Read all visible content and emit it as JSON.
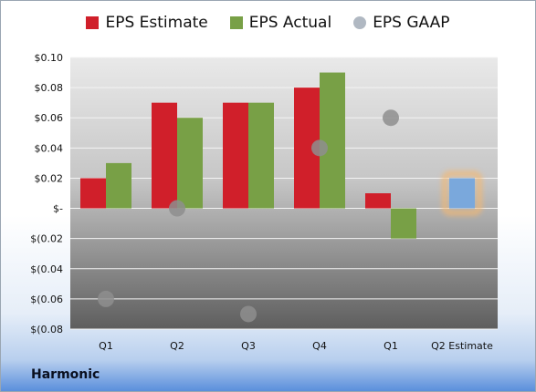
{
  "chart_data": {
    "type": "bar",
    "categories": [
      "Q1",
      "Q2",
      "Q3",
      "Q4",
      "Q1",
      "Q2 Estimate"
    ],
    "series": [
      {
        "name": "EPS Estimate",
        "color": "#d01f2a",
        "values": [
          0.02,
          0.07,
          0.07,
          0.08,
          0.01,
          null
        ]
      },
      {
        "name": "EPS Actual",
        "color": "#78a046",
        "values": [
          0.03,
          0.06,
          0.07,
          0.09,
          -0.02,
          null
        ]
      },
      {
        "name": "EPS GAAP",
        "color": "#b0b8c2",
        "marker": "circle",
        "values": [
          -0.06,
          0.0,
          -0.07,
          0.04,
          0.06,
          null
        ]
      }
    ],
    "estimate_bar": {
      "category": "Q2 Estimate",
      "value": 0.02,
      "color": "#7aa8dc",
      "glow": "#f5b870"
    },
    "yticks": [
      "$0.10",
      "$0.08",
      "$0.06",
      "$0.04",
      "$0.02",
      "$-",
      "$(0.02",
      "$(0.04",
      "$(0.06",
      "$(0.08"
    ],
    "ytick_values": [
      0.1,
      0.08,
      0.06,
      0.04,
      0.02,
      0.0,
      -0.02,
      -0.04,
      -0.06,
      -0.08
    ],
    "ylim": [
      -0.08,
      0.1
    ],
    "grid": true,
    "legend": "top-center"
  },
  "legend": {
    "estimate": "EPS Estimate",
    "actual": "EPS Actual",
    "gaap": "EPS GAAP",
    "estimate_color": "#d01f2a",
    "actual_color": "#78a046",
    "gaap_color": "#b0b8c2"
  },
  "brand": "Harmonic"
}
